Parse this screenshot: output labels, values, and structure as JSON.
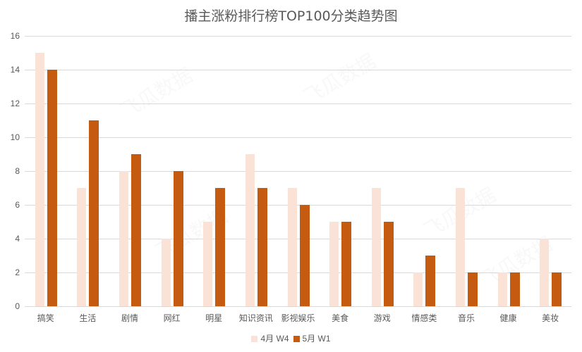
{
  "chart_data": {
    "type": "bar",
    "title": "播主涨粉排行榜TOP100分类趋势图",
    "xlabel": "",
    "ylabel": "",
    "ylim": [
      0,
      16
    ],
    "yticks": [
      0,
      2,
      4,
      6,
      8,
      10,
      12,
      14,
      16
    ],
    "grid": true,
    "legend_position": "bottom",
    "categories": [
      "搞笑",
      "生活",
      "剧情",
      "网红",
      "明星",
      "知识资讯",
      "影视娱乐",
      "美食",
      "游戏",
      "情感类",
      "音乐",
      "健康",
      "美妆"
    ],
    "series": [
      {
        "name": "4月 W4",
        "color": "#FAE3D6",
        "values": [
          15,
          7,
          8,
          4,
          5,
          9,
          7,
          5,
          7,
          2,
          7,
          2,
          4
        ]
      },
      {
        "name": "5月 W1",
        "color": "#C55A11",
        "values": [
          14,
          11,
          9,
          8,
          7,
          7,
          6,
          5,
          5,
          3,
          2,
          2,
          2
        ]
      }
    ]
  },
  "watermark": "飞瓜数据"
}
